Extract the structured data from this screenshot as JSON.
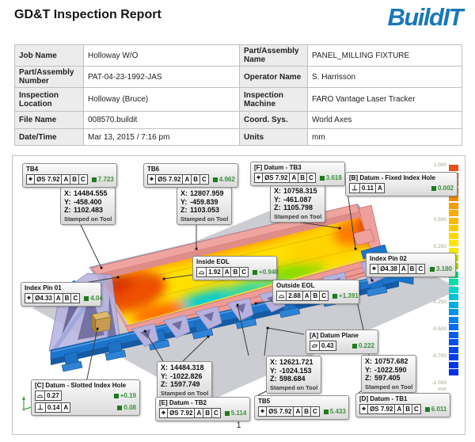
{
  "header": {
    "title": "GD&T Inspection Report",
    "logo": "BuildIT",
    "logo_color": "#1878b8"
  },
  "info_table": {
    "rows": [
      {
        "label1": "Job Name",
        "value1": "Holloway W/O",
        "label2": "Part/Assembly Name",
        "value2": "PANEL_MILLING FIXTURE"
      },
      {
        "label1": "Part/Assembly Number",
        "value1": "PAT-04-23-1992-JAS",
        "label2": "Operator Name",
        "value2": "S. Harrisson"
      },
      {
        "label1": "Inspection Location",
        "value1": "Holloway (Bruce)",
        "label2": "Inspection Machine",
        "value2": "FARO Vantage Laser Tracker"
      },
      {
        "label1": "File Name",
        "value1": "008570.buildit",
        "label2": "Coord. Sys.",
        "value2": "World Axes"
      },
      {
        "label1": "Date/Time",
        "value1": "Mar 13, 2015 / 7:16 pm",
        "label2": "Units",
        "value2": "mm"
      }
    ]
  },
  "coord_labels": {
    "x": "X:",
    "y": "Y:",
    "z": "Z:"
  },
  "coord_boxes": [
    {
      "x": "14484.555",
      "y": "-458.400",
      "z": "1102.483",
      "note": "Stamped on Tool"
    },
    {
      "x": "12807.959",
      "y": "-459.839",
      "z": "1103.053",
      "note": "Stamped on Tool"
    },
    {
      "x": "10758.315",
      "y": "-461.087",
      "z": "1105.798",
      "note": "Stamped on Tool"
    },
    {
      "x": "14484.318",
      "y": "-1022.826",
      "z": "1597.749",
      "note": "Stamped on Tool"
    },
    {
      "x": "12621.721",
      "y": "-1024.153",
      "z": "598.684",
      "note": "Stamped on Tool"
    },
    {
      "x": "10757.682",
      "y": "-1022.590",
      "z": "597.405",
      "note": "Stamped on Tool"
    }
  ],
  "callouts": [
    {
      "title": "TB4",
      "rows": [
        {
          "sym": "⌖",
          "tol": "ØS 7.92",
          "datums": [
            "A",
            "B",
            "C"
          ],
          "result": "7.723"
        }
      ]
    },
    {
      "title": "TB6",
      "rows": [
        {
          "sym": "⌖",
          "tol": "ØS 7.92",
          "datums": [
            "A",
            "B",
            "C"
          ],
          "result": "4.962"
        }
      ]
    },
    {
      "title": "[F] Datum - TB3",
      "rows": [
        {
          "sym": "⌖",
          "tol": "ØS 7.92",
          "datums": [
            "A",
            "B",
            "C"
          ],
          "result": "3.618"
        }
      ]
    },
    {
      "title": "[B] Datum - Fixed Index Hole",
      "rows": [
        {
          "sym": "⊥",
          "tol": "0.11",
          "datums": [
            "A"
          ],
          "result": "0.002"
        }
      ]
    },
    {
      "title": "Inside EOL",
      "rows": [
        {
          "sym": "⌓",
          "tol": "1.92",
          "datums": [
            "A",
            "B",
            "C"
          ],
          "result": "+0.940"
        }
      ]
    },
    {
      "title": "Index Pin 02",
      "rows": [
        {
          "sym": "⌖",
          "tol": "Ø4.38",
          "datums": [
            "A",
            "B",
            "C"
          ],
          "result": "3.180"
        }
      ]
    },
    {
      "title": "Index Pin 01",
      "rows": [
        {
          "sym": "⌖",
          "tol": "Ø4.33",
          "datums": [
            "A",
            "B",
            "C"
          ],
          "result": "4.04"
        }
      ]
    },
    {
      "title": "Outside EOL",
      "rows": [
        {
          "sym": "⌓",
          "tol": "2.88",
          "datums": [
            "A",
            "B",
            "C"
          ],
          "result": "+1.391"
        }
      ]
    },
    {
      "title": "[A] Datum Plane",
      "rows": [
        {
          "sym": "▱",
          "tol": "0.43",
          "datums": [],
          "result": "0.222"
        }
      ]
    },
    {
      "title": "[C] Datum - Slotted Index Hole",
      "rows": [
        {
          "sym": "⌓",
          "tol": "0.27",
          "datums": [],
          "result": "+0.19"
        },
        {
          "sym": "⊥",
          "tol": "0.14",
          "datums": [
            "A"
          ],
          "result": "0.08"
        }
      ]
    },
    {
      "title": "[E] Datum - TB2",
      "rows": [
        {
          "sym": "⌖",
          "tol": "ØS 7.92",
          "datums": [
            "A",
            "B",
            "C"
          ],
          "result": "5.114"
        }
      ]
    },
    {
      "title": "TB5",
      "rows": [
        {
          "sym": "⌖",
          "tol": "ØS 7.92",
          "datums": [
            "A",
            "B",
            "C"
          ],
          "result": "5.433"
        }
      ]
    },
    {
      "title": "[D] Datum - TB1",
      "rows": [
        {
          "sym": "⌖",
          "tol": "ØS 7.92",
          "datums": [
            "A",
            "B",
            "C"
          ],
          "result": "6.011"
        }
      ]
    }
  ],
  "status_colors": {
    "pass_square": "#1d7c1d",
    "pass_text": "#3e8e3e"
  },
  "color_scale": {
    "labels": [
      "1.000",
      "0.750",
      "0.500",
      "0.250",
      "0.000",
      "-0.000",
      "-0.250",
      "-0.500",
      "-0.750",
      "-1.000"
    ],
    "unit": "mm",
    "colors": [
      "#e8501a",
      "#ed5f11",
      "#f06c08",
      "#f37a04",
      "#f68a00",
      "#f89900",
      "#faaa00",
      "#fbba00",
      "#fcca00",
      "#fdd800",
      "#fee400",
      "#f4e800",
      "#d9e800",
      "#b4e200",
      "#00e57f",
      "#00dfa8",
      "#00d7c6",
      "#00c2df",
      "#00ace8",
      "#0095ea",
      "#0080ec",
      "#006cee",
      "#005cef",
      "#0050f0",
      "#0046f0",
      "#003eee",
      "#0036ea",
      "#0030e6"
    ]
  },
  "page_number": "1"
}
